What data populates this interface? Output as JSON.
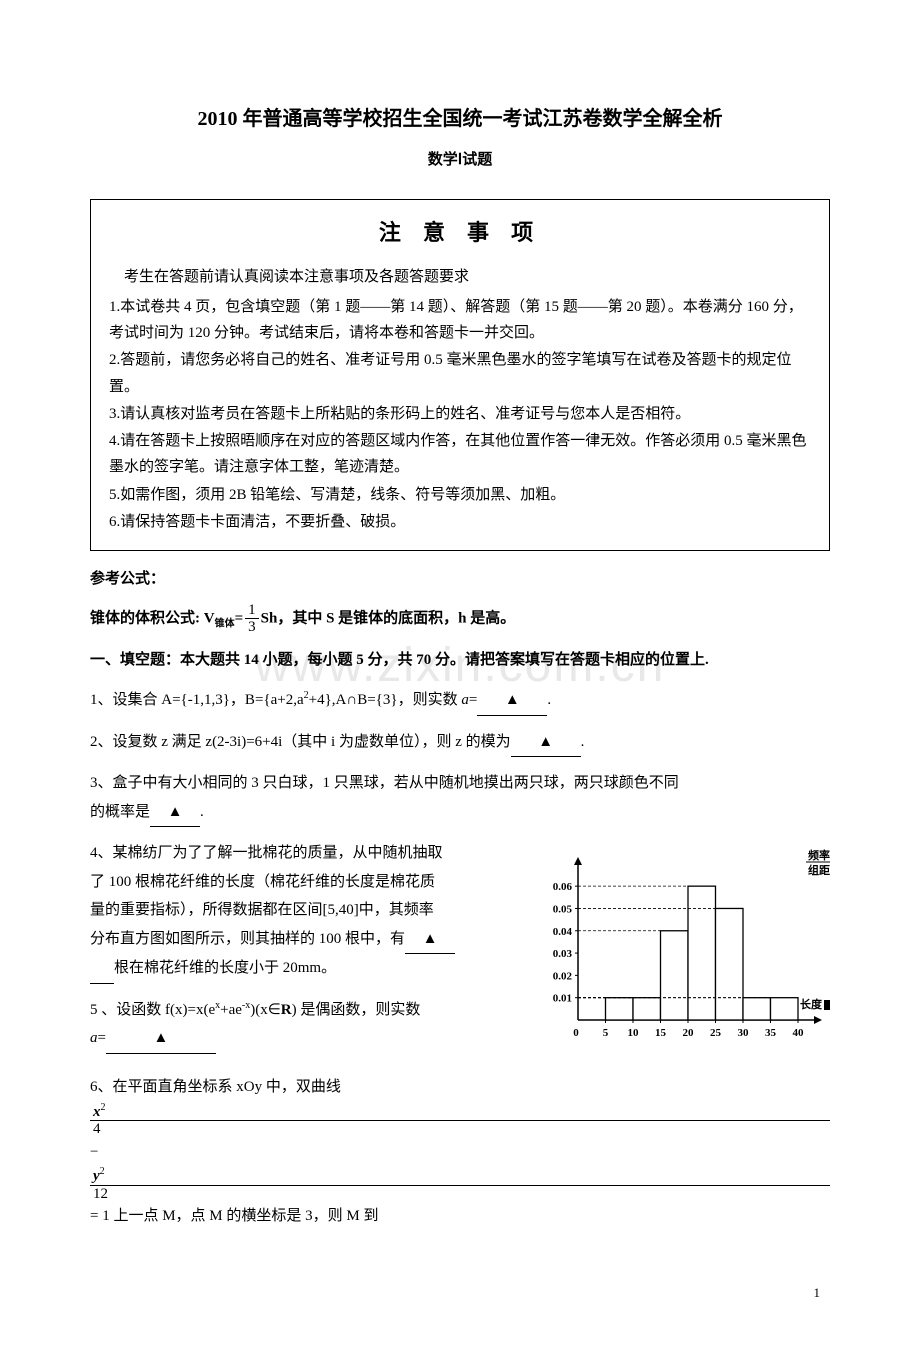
{
  "watermark": "www.zixin.com.cn",
  "title": "2010 年普通高等学校招生全国统一考试江苏卷数学全解全析",
  "subtitle": "数学Ⅰ试题",
  "notice": {
    "heading": "注 意 事 项",
    "intro": "考生在答题前请认真阅读本注意事项及各题答题要求",
    "items": [
      "1.本试卷共 4 页，包含填空题（第 1 题——第 14 题）、解答题（第 15 题——第 20 题）。本卷满分 160 分，考试时间为 120 分钟。考试结束后，请将本卷和答题卡一并交回。",
      "2.答题前，请您务必将自己的姓名、准考证号用 0.5 毫米黑色墨水的签字笔填写在试卷及答题卡的规定位置。",
      "3.请认真核对监考员在答题卡上所粘贴的条形码上的姓名、准考证号与您本人是否相符。",
      "4.请在答题卡上按照晤顺序在对应的答题区域内作答，在其他位置作答一律无效。作答必须用 0.5 毫米黑色墨水的签字笔。请注意字体工整，笔迹清楚。",
      "5.如需作图，须用 2B 铅笔绘、写清楚，线条、符号等须加黑、加粗。",
      "6.请保持答题卡卡面清洁，不要折叠、破损。"
    ]
  },
  "formula": {
    "heading": "参考公式：",
    "text_pre": "锥体的体积公式: V",
    "text_sub": "锥体",
    "text_eq": "=",
    "frac_num": "1",
    "frac_den": "3",
    "text_post": "Sh，其中 S 是锥体的底面积，h 是高。"
  },
  "section1": "一、填空题：本大题共 14 小题，每小题 5 分，共 70 分。请把答案填写在答题卡相应的位置上.",
  "q1": {
    "pre": "1、设集合 A={-1,1,3}，B={a+2,a",
    "sup": "2",
    "mid": "+4},A∩B={3}，则实数 ",
    "avar": "a",
    "post": "="
  },
  "q2": "2、设复数 z 满足 z(2-3i)=6+4i（其中 i 为虚数单位），则 z 的模为",
  "q3": {
    "line1": "3、盒子中有大小相同的 3 只白球，1 只黑球，若从中随机地摸出两只球，两只球颜色不同",
    "line2_pre": "的概率是",
    "line2_post": "."
  },
  "q4": {
    "l1": "4、某棉纺厂为了了解一批棉花的质量，从中随机抽取",
    "l2": "了 100 根棉花纤维的长度（棉花纤维的长度是棉花质",
    "l3": "量的重要指标），所得数据都在区间[5,40]中，其频率",
    "l4_pre": "分布直方图如图所示，则其抽样的 100 根中，有",
    "l5": "根在棉花纤维的长度小于 20mm。"
  },
  "q5": {
    "pre": "5 、设函数 f(x)=x(e",
    "sup1": "x",
    "mid1": "+ae",
    "sup2": "-x",
    "mid2": ")(x∈",
    "r": "R",
    "mid3": ") 是偶函数，则实数",
    "line2_pre": "a",
    "line2_mid": "="
  },
  "q6": {
    "pre": "6、在平面直角坐标系 xOy 中，双曲线",
    "x2": "x",
    "den1": "4",
    "minus": "−",
    "y2": "y",
    "den2": "12",
    "eq": "= 1",
    "post": "上一点 M，点 M 的横坐标是 3，则 M 到"
  },
  "chart": {
    "ylabel_top": "频率",
    "ylabel_bot": "组距",
    "xlabel": "长度",
    "unit_suffix": "mm",
    "yticks": [
      "0.06",
      "0.05",
      "0.04",
      "0.03",
      "0.02",
      "0.01"
    ],
    "xticks": [
      "0",
      "5",
      "10",
      "15",
      "20",
      "25",
      "30",
      "35",
      "40"
    ],
    "bars": [
      {
        "x": 5,
        "h": 0.01
      },
      {
        "x": 10,
        "h": 0.01
      },
      {
        "x": 15,
        "h": 0.04
      },
      {
        "x": 20,
        "h": 0.06
      },
      {
        "x": 25,
        "h": 0.05
      },
      {
        "x": 30,
        "h": 0.01
      },
      {
        "x": 35,
        "h": 0.01
      }
    ],
    "axis_color": "#000000",
    "bar_fill": "#ffffff",
    "bar_stroke": "#000000",
    "font_size": 11
  },
  "page_number": "1"
}
